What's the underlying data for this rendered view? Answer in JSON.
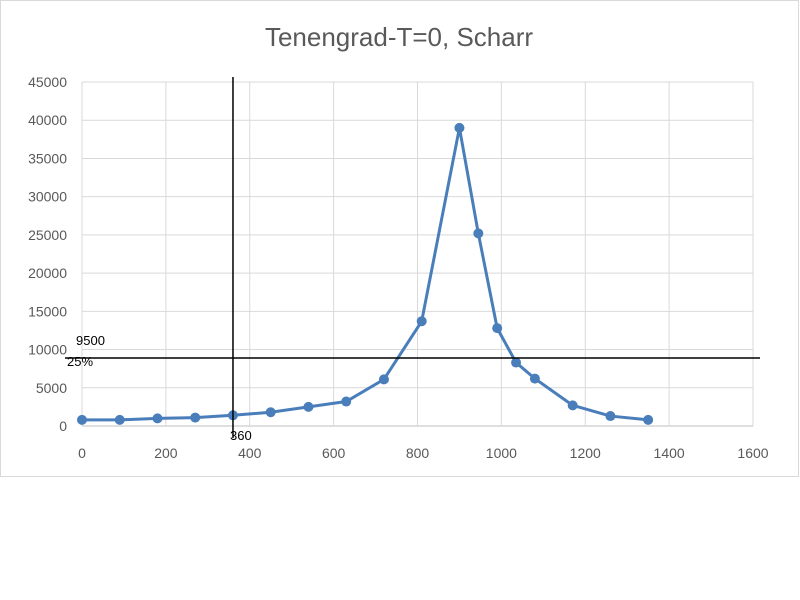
{
  "chart_data": {
    "type": "scatter",
    "title": "Tenengrad-T=0, Scharr",
    "xlabel": "",
    "ylabel": "",
    "xlim": [
      0,
      1600
    ],
    "ylim": [
      0,
      45000
    ],
    "x_ticks": [
      "0",
      "200",
      "400",
      "600",
      "800",
      "1000",
      "1200",
      "1400",
      "1600"
    ],
    "y_ticks": [
      "0",
      "5000",
      "10000",
      "15000",
      "20000",
      "25000",
      "30000",
      "35000",
      "40000",
      "45000"
    ],
    "grid": true,
    "legend": "none",
    "series": [
      {
        "color": "#4a7ebb",
        "x": [
          0,
          90,
          180,
          270,
          360,
          450,
          540,
          630,
          720,
          810,
          900,
          945,
          990,
          1035,
          1080,
          1170,
          1260,
          1350
        ],
        "y": [
          800,
          800,
          1000,
          1100,
          1400,
          1800,
          2500,
          3200,
          6100,
          13700,
          39000,
          25200,
          12800,
          8300,
          6200,
          2700,
          1300,
          800
        ]
      }
    ],
    "reference_lines": {
      "vertical_x": 360,
      "horizontal_y": 8900,
      "color": "#000000"
    },
    "annotations": [
      "9500",
      "25%",
      "360"
    ]
  }
}
